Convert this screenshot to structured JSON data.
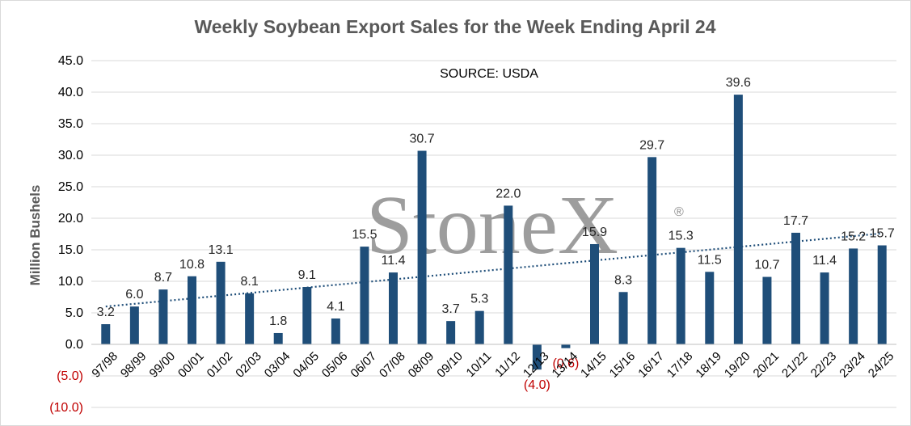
{
  "chart_data": {
    "type": "bar",
    "title": "Weekly Soybean Export Sales for the Week Ending April 24",
    "source_note": "SOURCE: USDA",
    "ylabel": "Million Bushels",
    "xlabel": "",
    "ylim": [
      -10,
      45
    ],
    "yticks": [
      {
        "value": 45,
        "label": "45.0"
      },
      {
        "value": 40,
        "label": "40.0"
      },
      {
        "value": 35,
        "label": "35.0"
      },
      {
        "value": 30,
        "label": "30.0"
      },
      {
        "value": 25,
        "label": "25.0"
      },
      {
        "value": 20,
        "label": "20.0"
      },
      {
        "value": 15,
        "label": "15.0"
      },
      {
        "value": 10,
        "label": "10.0"
      },
      {
        "value": 5,
        "label": "5.0"
      },
      {
        "value": 0,
        "label": "0.0"
      },
      {
        "value": -5,
        "label": "(5.0)"
      },
      {
        "value": -10,
        "label": "(10.0)"
      }
    ],
    "grid": true,
    "categories": [
      "97/98",
      "98/99",
      "99/00",
      "00/01",
      "01/02",
      "02/03",
      "03/04",
      "04/05",
      "05/06",
      "06/07",
      "07/08",
      "08/09",
      "09/10",
      "10/11",
      "11/12",
      "12/13",
      "13/14",
      "14/15",
      "15/16",
      "16/17",
      "17/18",
      "18/19",
      "19/20",
      "20/21",
      "21/22",
      "22/23",
      "23/24",
      "24/25"
    ],
    "values": [
      3.2,
      6.0,
      8.7,
      10.8,
      13.1,
      8.1,
      1.8,
      9.1,
      4.1,
      15.5,
      11.4,
      30.7,
      3.7,
      5.3,
      22.0,
      -4.0,
      -0.6,
      15.9,
      8.3,
      29.7,
      15.3,
      11.5,
      39.6,
      10.7,
      17.7,
      11.4,
      15.2,
      15.7
    ],
    "value_labels": [
      "3.2",
      "6.0",
      "8.7",
      "10.8",
      "13.1",
      "8.1",
      "1.8",
      "9.1",
      "4.1",
      "15.5",
      "11.4",
      "30.7",
      "3.7",
      "5.3",
      "22.0",
      "(4.0)",
      "(0.6)",
      "15.9",
      "8.3",
      "29.7",
      "15.3",
      "11.5",
      "39.6",
      "10.7",
      "17.7",
      "11.4",
      "15.2",
      "15.7"
    ],
    "trendline": {
      "style": "dotted",
      "start": 6.0,
      "end": 17.6
    },
    "colors": {
      "bar": "#1f4e79",
      "trend": "#1f4e79",
      "negative_label": "#c00000",
      "grid": "#d9d9d9"
    },
    "watermark": {
      "text": "StoneX",
      "mark": "®"
    }
  }
}
